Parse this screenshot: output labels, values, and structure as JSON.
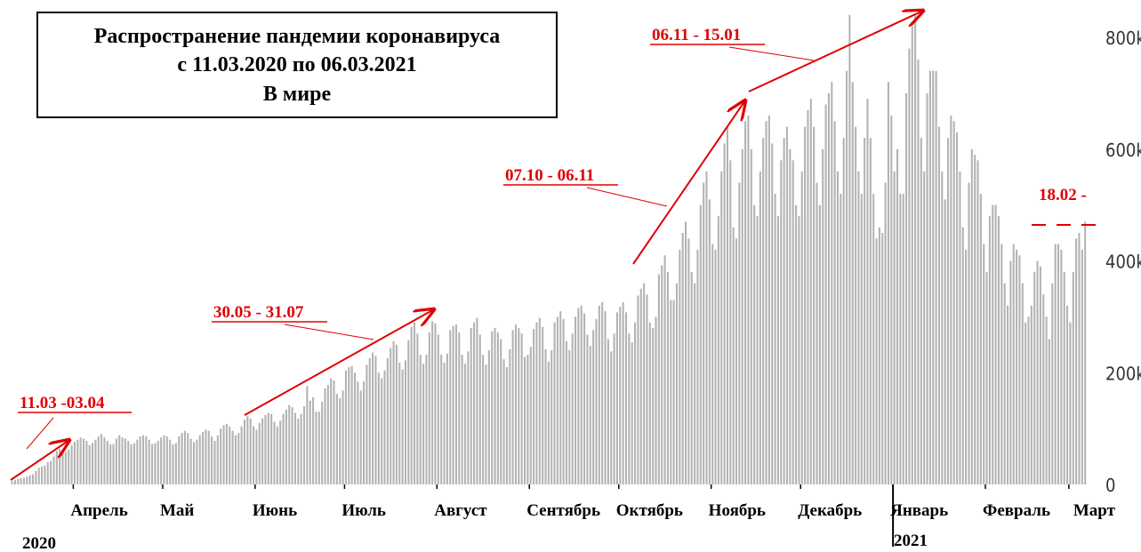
{
  "chart_data": {
    "type": "bar",
    "title_lines": [
      "Распространение пандемии коронавируса",
      "с 11.03.2020 по 06.03.2021",
      "В мире"
    ],
    "annotations": [
      "11.03 -03.04",
      "30.05 - 31.07",
      "07.10 - 06.11",
      "06.11 - 15.01",
      "18.02 -"
    ],
    "years": [
      "2020",
      "2021"
    ],
    "color": "#b3b3b3",
    "ylim": [
      0,
      800000
    ],
    "yticks": [
      0,
      {
        "value": 200000,
        "label": "200k"
      },
      {
        "value": 400000,
        "label": "400k"
      },
      {
        "value": 600000,
        "label": "600k"
      },
      {
        "value": 800000,
        "label": "800k"
      }
    ],
    "xlim": [
      0,
      361
    ],
    "xticks": [
      {
        "value": 21,
        "label": "Апрель"
      },
      {
        "value": 51,
        "label": "Май"
      },
      {
        "value": 82,
        "label": "Июнь"
      },
      {
        "value": 112,
        "label": "Июль"
      },
      {
        "value": 143,
        "label": "Август"
      },
      {
        "value": 174,
        "label": "Сентябрь"
      },
      {
        "value": 204,
        "label": "Октябрь"
      },
      {
        "value": 235,
        "label": "Ноябрь"
      },
      {
        "value": 265,
        "label": "Декабрь"
      },
      {
        "value": 296,
        "label": "Январь"
      },
      {
        "value": 327,
        "label": "Февраль"
      },
      {
        "value": 355,
        "label": "Март"
      }
    ],
    "values": [
      6000,
      8000,
      10000,
      11000,
      12000,
      14000,
      16000,
      18000,
      24000,
      30000,
      32000,
      34000,
      40000,
      42000,
      50000,
      60000,
      64000,
      62000,
      58000,
      62000,
      70000,
      76000,
      80000,
      84000,
      82000,
      78000,
      70000,
      74000,
      80000,
      86000,
      90000,
      84000,
      78000,
      72000,
      72000,
      82000,
      88000,
      84000,
      82000,
      78000,
      72000,
      74000,
      80000,
      86000,
      88000,
      86000,
      80000,
      72000,
      74000,
      78000,
      84000,
      88000,
      86000,
      80000,
      72000,
      74000,
      86000,
      92000,
      96000,
      92000,
      82000,
      76000,
      80000,
      88000,
      94000,
      98000,
      96000,
      86000,
      78000,
      88000,
      100000,
      106000,
      108000,
      104000,
      96000,
      88000,
      92000,
      104000,
      116000,
      122000,
      118000,
      104000,
      98000,
      110000,
      118000,
      124000,
      128000,
      126000,
      112000,
      104000,
      114000,
      126000,
      134000,
      142000,
      138000,
      128000,
      118000,
      126000,
      140000,
      176000,
      150000,
      156000,
      130000,
      130000,
      148000,
      172000,
      178000,
      190000,
      186000,
      162000,
      154000,
      168000,
      204000,
      210000,
      212000,
      200000,
      184000,
      168000,
      184000,
      214000,
      226000,
      236000,
      230000,
      200000,
      190000,
      204000,
      226000,
      244000,
      256000,
      250000,
      218000,
      206000,
      222000,
      258000,
      282000,
      290000,
      270000,
      232000,
      216000,
      232000,
      272000,
      292000,
      288000,
      268000,
      232000,
      218000,
      234000,
      276000,
      284000,
      286000,
      272000,
      232000,
      216000,
      238000,
      280000,
      290000,
      298000,
      268000,
      232000,
      214000,
      240000,
      274000,
      280000,
      272000,
      260000,
      224000,
      210000,
      242000,
      276000,
      286000,
      280000,
      270000,
      228000,
      232000,
      246000,
      278000,
      290000,
      298000,
      282000,
      242000,
      220000,
      240000,
      290000,
      300000,
      310000,
      296000,
      256000,
      240000,
      270000,
      300000,
      316000,
      320000,
      306000,
      268000,
      248000,
      276000,
      296000,
      320000,
      326000,
      310000,
      260000,
      238000,
      270000,
      308000,
      318000,
      326000,
      308000,
      270000,
      254000,
      290000,
      338000,
      350000,
      360000,
      340000,
      290000,
      280000,
      300000,
      376000,
      392000,
      410000,
      380000,
      330000,
      330000,
      360000,
      420000,
      450000,
      470000,
      440000,
      380000,
      360000,
      420000,
      500000,
      540000,
      560000,
      510000,
      430000,
      420000,
      480000,
      560000,
      610000,
      640000,
      580000,
      460000,
      440000,
      540000,
      600000,
      650000,
      660000,
      600000,
      500000,
      480000,
      560000,
      620000,
      650000,
      660000,
      610000,
      520000,
      480000,
      580000,
      620000,
      640000,
      600000,
      580000,
      500000,
      480000,
      560000,
      640000,
      670000,
      690000,
      640000,
      540000,
      500000,
      600000,
      680000,
      700000,
      720000,
      650000,
      560000,
      520000,
      620000,
      740000,
      840000,
      720000,
      640000,
      560000,
      520000,
      620000,
      690000,
      620000,
      520000,
      440000,
      460000,
      450000,
      540000,
      720000,
      660000,
      560000,
      600000,
      520000,
      520000,
      700000,
      780000,
      820000,
      840000,
      760000,
      620000,
      560000,
      700000,
      740000,
      740000,
      740000,
      640000,
      560000,
      510000,
      620000,
      660000,
      650000,
      630000,
      560000,
      460000,
      420000,
      540000,
      600000,
      590000,
      580000,
      520000,
      430000,
      380000,
      480000,
      500000,
      500000,
      480000,
      430000,
      360000,
      320000,
      400000,
      430000,
      420000,
      410000,
      360000,
      290000,
      300000,
      320000,
      380000,
      400000,
      390000,
      340000,
      300000,
      260000,
      360000,
      430000,
      430000,
      420000,
      380000,
      320000,
      290000,
      380000,
      440000,
      450000,
      420000,
      470000
    ]
  }
}
